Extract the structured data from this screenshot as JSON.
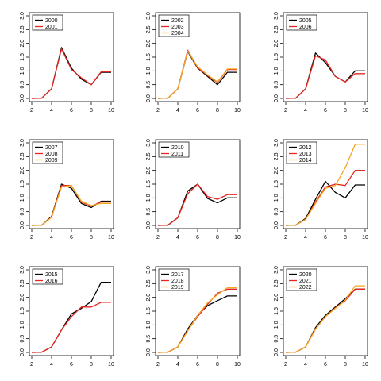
{
  "chart_data": [
    {
      "type": "line",
      "x": [
        2,
        3,
        4,
        5,
        6,
        7,
        8,
        9,
        10
      ],
      "xticks": [
        "2",
        "4",
        "6",
        "8",
        "10"
      ],
      "yticks": [
        "0.0",
        "0.5",
        "1.0",
        "1.5",
        "2.0",
        "2.5",
        "3.0"
      ],
      "xlim": [
        2,
        10
      ],
      "ylim": [
        0,
        3
      ],
      "legend_position": "top-left",
      "series": [
        {
          "name": "2000",
          "color": "#000000",
          "values": [
            0.0,
            0.01,
            0.35,
            1.85,
            1.1,
            0.7,
            0.5,
            0.95,
            0.95
          ]
        },
        {
          "name": "2001",
          "color": "#e8251f",
          "values": [
            0.0,
            0.01,
            0.35,
            1.8,
            1.05,
            0.75,
            0.5,
            0.97,
            0.97
          ]
        }
      ]
    },
    {
      "type": "line",
      "x": [
        2,
        3,
        4,
        5,
        6,
        7,
        8,
        9,
        10
      ],
      "xticks": [
        "2",
        "4",
        "6",
        "8",
        "10"
      ],
      "yticks": [
        "0.0",
        "0.5",
        "1.0",
        "1.5",
        "2.0",
        "2.5",
        "3.0"
      ],
      "xlim": [
        2,
        10
      ],
      "ylim": [
        0,
        3
      ],
      "legend_position": "top-left",
      "series": [
        {
          "name": "2002",
          "color": "#000000",
          "values": [
            0.0,
            0.01,
            0.35,
            1.7,
            1.1,
            0.8,
            0.5,
            0.95,
            0.95
          ]
        },
        {
          "name": "2003",
          "color": "#e8251f",
          "values": [
            0.0,
            0.01,
            0.35,
            1.75,
            1.12,
            0.83,
            0.58,
            1.05,
            1.05
          ]
        },
        {
          "name": "2004",
          "color": "#f5a623",
          "values": [
            0.0,
            0.01,
            0.35,
            1.72,
            1.15,
            0.85,
            0.6,
            1.07,
            1.07
          ]
        }
      ]
    },
    {
      "type": "line",
      "x": [
        2,
        3,
        4,
        5,
        6,
        7,
        8,
        9,
        10
      ],
      "xticks": [
        "2",
        "4",
        "6",
        "8",
        "10"
      ],
      "yticks": [
        "0.0",
        "0.5",
        "1.0",
        "1.5",
        "2.0",
        "2.5",
        "3.0"
      ],
      "xlim": [
        2,
        10
      ],
      "ylim": [
        0,
        3
      ],
      "legend_position": "top-left",
      "series": [
        {
          "name": "2005",
          "color": "#000000",
          "values": [
            0.0,
            0.01,
            0.35,
            1.65,
            1.3,
            0.8,
            0.6,
            1.0,
            1.0
          ]
        },
        {
          "name": "2006",
          "color": "#e8251f",
          "values": [
            0.0,
            0.01,
            0.35,
            1.55,
            1.4,
            0.8,
            0.6,
            0.9,
            0.9
          ]
        }
      ]
    },
    {
      "type": "line",
      "x": [
        2,
        3,
        4,
        5,
        6,
        7,
        8,
        9,
        10
      ],
      "xticks": [
        "2",
        "4",
        "6",
        "8",
        "10"
      ],
      "yticks": [
        "0.0",
        "0.5",
        "1.0",
        "1.5",
        "2.0",
        "2.5",
        "3.0"
      ],
      "xlim": [
        2,
        10
      ],
      "ylim": [
        0,
        3
      ],
      "legend_position": "top-left",
      "series": [
        {
          "name": "2007",
          "color": "#000000",
          "values": [
            0.0,
            0.01,
            0.33,
            1.5,
            1.35,
            0.8,
            0.65,
            0.88,
            0.88
          ]
        },
        {
          "name": "2008",
          "color": "#e8251f",
          "values": [
            0.0,
            0.01,
            0.3,
            1.45,
            1.45,
            0.85,
            0.7,
            0.85,
            0.85
          ]
        },
        {
          "name": "2009",
          "color": "#f5a623",
          "values": [
            0.0,
            0.01,
            0.3,
            1.4,
            1.45,
            0.88,
            0.72,
            0.8,
            0.8
          ]
        }
      ]
    },
    {
      "type": "line",
      "x": [
        2,
        3,
        4,
        5,
        6,
        7,
        8,
        9,
        10
      ],
      "xticks": [
        "2",
        "4",
        "6",
        "8",
        "10"
      ],
      "yticks": [
        "0.0",
        "0.5",
        "1.0",
        "1.5",
        "2.0",
        "2.5",
        "3.0"
      ],
      "xlim": [
        2,
        10
      ],
      "ylim": [
        0,
        3
      ],
      "legend_position": "top-left",
      "series": [
        {
          "name": "2010",
          "color": "#000000",
          "values": [
            0.0,
            0.01,
            0.28,
            1.25,
            1.5,
            0.98,
            0.82,
            1.0,
            1.0
          ]
        },
        {
          "name": "2011",
          "color": "#e8251f",
          "values": [
            0.0,
            0.01,
            0.28,
            1.15,
            1.5,
            1.05,
            0.95,
            1.12,
            1.12
          ]
        }
      ]
    },
    {
      "type": "line",
      "x": [
        2,
        3,
        4,
        5,
        6,
        7,
        8,
        9,
        10
      ],
      "xticks": [
        "2",
        "4",
        "6",
        "8",
        "10"
      ],
      "yticks": [
        "0.0",
        "0.5",
        "1.0",
        "1.5",
        "2.0",
        "2.5",
        "3.0"
      ],
      "xlim": [
        2,
        10
      ],
      "ylim": [
        0,
        3
      ],
      "legend_position": "top-left",
      "series": [
        {
          "name": "2012",
          "color": "#000000",
          "values": [
            0.0,
            0.01,
            0.25,
            0.95,
            1.6,
            1.2,
            1.0,
            1.47,
            1.47
          ]
        },
        {
          "name": "2013",
          "color": "#e8251f",
          "values": [
            0.0,
            0.01,
            0.22,
            0.85,
            1.4,
            1.5,
            1.45,
            2.0,
            2.0
          ]
        },
        {
          "name": "2014",
          "color": "#f5a623",
          "values": [
            0.0,
            0.01,
            0.22,
            0.8,
            1.35,
            1.45,
            2.1,
            2.95,
            2.95
          ]
        }
      ]
    },
    {
      "type": "line",
      "x": [
        2,
        3,
        4,
        5,
        6,
        7,
        8,
        9,
        10
      ],
      "xticks": [
        "2",
        "4",
        "6",
        "8",
        "10"
      ],
      "yticks": [
        "0.0",
        "0.5",
        "1.0",
        "1.5",
        "2.0",
        "2.5",
        "3.0"
      ],
      "xlim": [
        2,
        10
      ],
      "ylim": [
        0,
        3
      ],
      "legend_position": "top-left",
      "series": [
        {
          "name": "2015",
          "color": "#000000",
          "values": [
            0.0,
            0.01,
            0.2,
            0.82,
            1.4,
            1.6,
            1.85,
            2.55,
            2.55
          ]
        },
        {
          "name": "2016",
          "color": "#e8251f",
          "values": [
            0.0,
            0.01,
            0.2,
            0.82,
            1.3,
            1.65,
            1.65,
            1.82,
            1.82
          ]
        }
      ]
    },
    {
      "type": "line",
      "x": [
        2,
        3,
        4,
        5,
        6,
        7,
        8,
        9,
        10
      ],
      "xticks": [
        "2",
        "4",
        "6",
        "8",
        "10"
      ],
      "yticks": [
        "0.0",
        "0.5",
        "1.0",
        "1.5",
        "2.0",
        "2.5",
        "3.0"
      ],
      "xlim": [
        2,
        10
      ],
      "ylim": [
        0,
        3
      ],
      "legend_position": "top-left",
      "series": [
        {
          "name": "2017",
          "color": "#000000",
          "values": [
            0.0,
            0.01,
            0.2,
            0.85,
            1.35,
            1.7,
            1.88,
            2.05,
            2.05
          ]
        },
        {
          "name": "2018",
          "color": "#e8251f",
          "values": [
            0.0,
            0.01,
            0.2,
            0.8,
            1.3,
            1.75,
            2.15,
            2.3,
            2.3
          ]
        },
        {
          "name": "2019",
          "color": "#f5a623",
          "values": [
            0.0,
            0.01,
            0.2,
            0.78,
            1.35,
            1.8,
            2.1,
            2.35,
            2.35
          ]
        }
      ]
    },
    {
      "type": "line",
      "x": [
        2,
        3,
        4,
        5,
        6,
        7,
        8,
        9,
        10
      ],
      "xticks": [
        "2",
        "4",
        "6",
        "8",
        "10"
      ],
      "yticks": [
        "0.0",
        "0.5",
        "1.0",
        "1.5",
        "2.0",
        "2.5",
        "3.0"
      ],
      "xlim": [
        2,
        10
      ],
      "ylim": [
        0,
        3
      ],
      "legend_position": "top-left",
      "series": [
        {
          "name": "2020",
          "color": "#000000",
          "values": [
            0.0,
            0.01,
            0.2,
            0.9,
            1.35,
            1.65,
            1.95,
            2.3,
            2.3
          ]
        },
        {
          "name": "2021",
          "color": "#e8251f",
          "values": [
            0.0,
            0.01,
            0.2,
            0.85,
            1.3,
            1.62,
            1.88,
            2.3,
            2.3
          ]
        },
        {
          "name": "2022",
          "color": "#f5a623",
          "values": [
            0.0,
            0.01,
            0.2,
            0.85,
            1.3,
            1.6,
            1.9,
            2.42,
            2.42
          ]
        }
      ]
    }
  ]
}
